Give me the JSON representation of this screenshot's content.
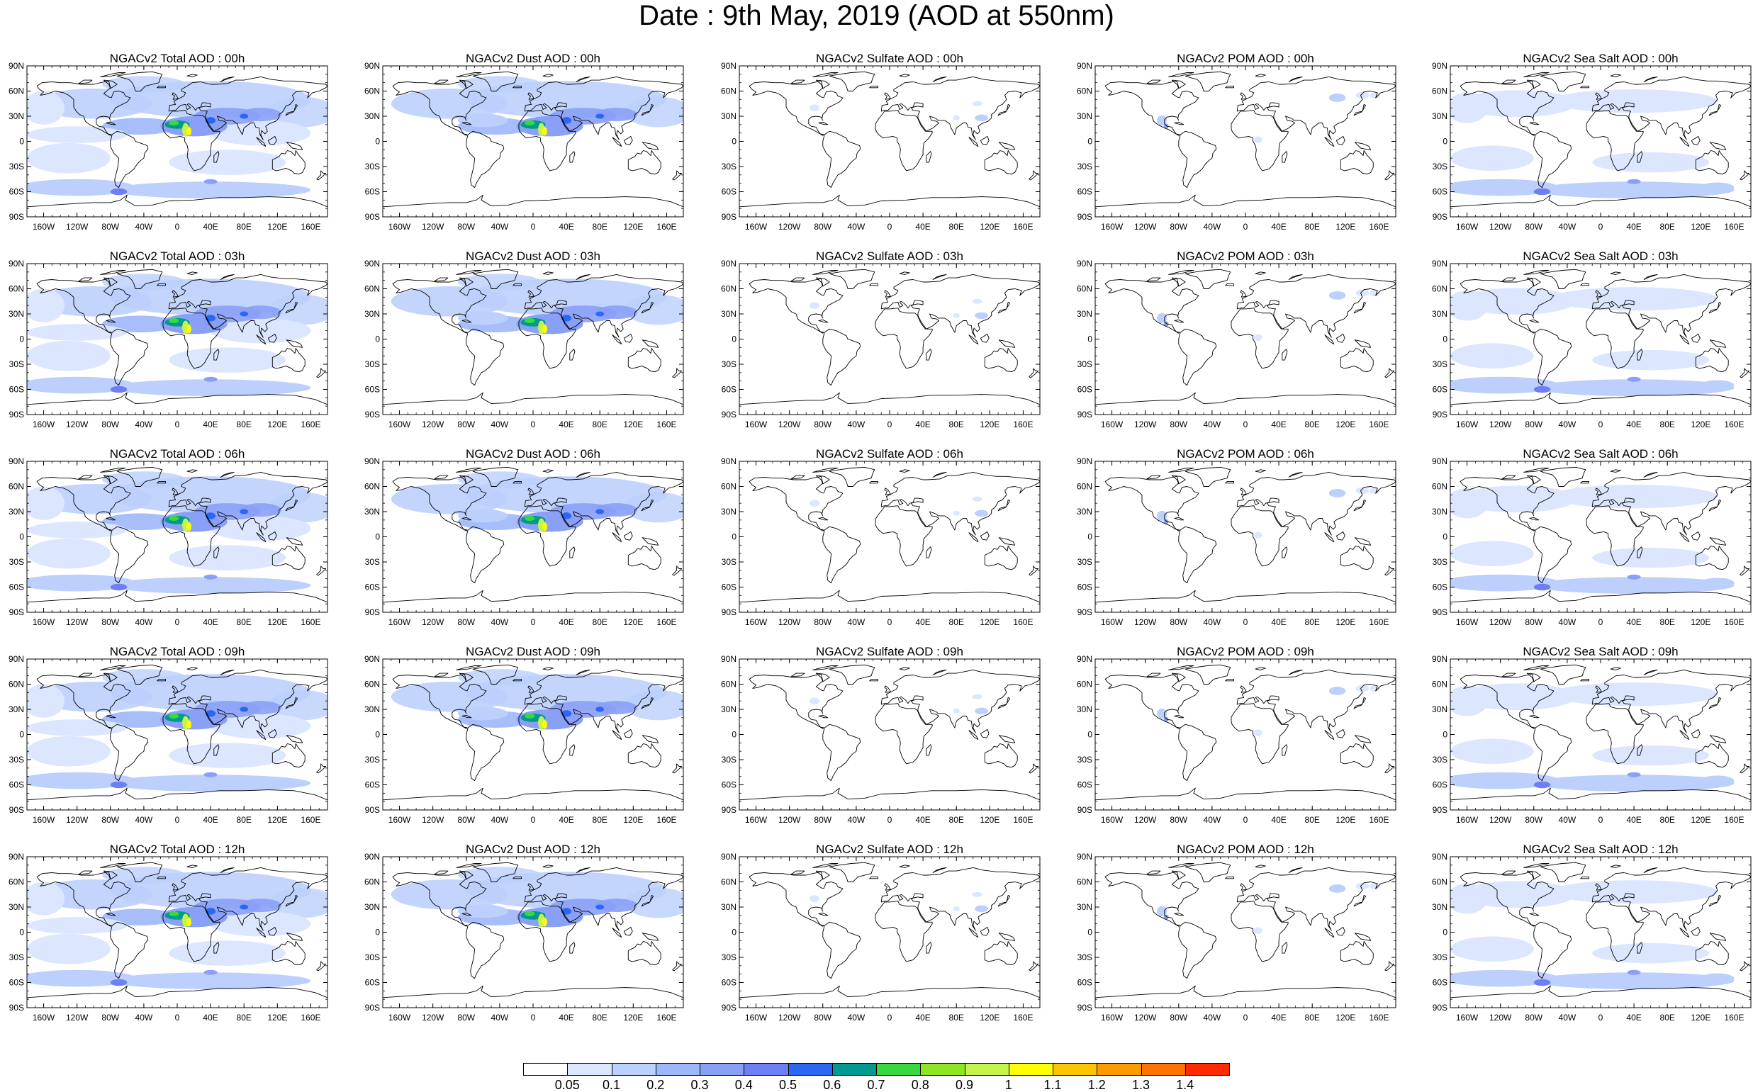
{
  "title": "Date : 9th May, 2019 (AOD at 550nm)",
  "panels": [
    [
      {
        "title": "NGACv2 Total AOD : 00h",
        "type": "total"
      },
      {
        "title": "NGACv2 Dust AOD : 00h",
        "type": "dust"
      },
      {
        "title": "NGACv2 Sulfate AOD : 00h",
        "type": "sulfate"
      },
      {
        "title": "NGACv2 POM AOD : 00h",
        "type": "pom"
      },
      {
        "title": "NGACv2 Sea Salt AOD : 00h",
        "type": "seasalt"
      }
    ],
    [
      {
        "title": "NGACv2 Total AOD : 03h",
        "type": "total"
      },
      {
        "title": "NGACv2 Dust AOD : 03h",
        "type": "dust"
      },
      {
        "title": "NGACv2 Sulfate AOD : 03h",
        "type": "sulfate"
      },
      {
        "title": "NGACv2 POM AOD : 03h",
        "type": "pom"
      },
      {
        "title": "NGACv2 Sea Salt AOD : 03h",
        "type": "seasalt"
      }
    ],
    [
      {
        "title": "NGACv2 Total AOD : 06h",
        "type": "total"
      },
      {
        "title": "NGACv2 Dust AOD : 06h",
        "type": "dust"
      },
      {
        "title": "NGACv2 Sulfate AOD : 06h",
        "type": "sulfate"
      },
      {
        "title": "NGACv2 POM AOD : 06h",
        "type": "pom"
      },
      {
        "title": "NGACv2 Sea Salt AOD : 06h",
        "type": "seasalt"
      }
    ],
    [
      {
        "title": "NGACv2 Total AOD : 09h",
        "type": "total"
      },
      {
        "title": "NGACv2 Dust AOD : 09h",
        "type": "dust"
      },
      {
        "title": "NGACv2 Sulfate AOD : 09h",
        "type": "sulfate"
      },
      {
        "title": "NGACv2 POM AOD : 09h",
        "type": "pom"
      },
      {
        "title": "NGACv2 Sea Salt  AOD : 09h",
        "type": "seasalt"
      }
    ],
    [
      {
        "title": "NGACv2 Total AOD :  12h",
        "type": "total"
      },
      {
        "title": "NGACv2 Dust AOD : 12h",
        "type": "dust"
      },
      {
        "title": "NGACv2 Sulfate AOD : 12h",
        "type": "sulfate"
      },
      {
        "title": "NGACv2 POM  AOD : 12h",
        "type": "pom"
      },
      {
        "title": "NGACv2 Sea Salt AOD : 12h",
        "type": "seasalt"
      }
    ]
  ],
  "lat_ticks": [
    "90N",
    "60N",
    "30N",
    "0",
    "30S",
    "60S",
    "90S"
  ],
  "lon_ticks": [
    "160W",
    "120W",
    "80W",
    "40W",
    "0",
    "40E",
    "80E",
    "120E",
    "160E"
  ],
  "colorbar": {
    "labels": [
      "0.05",
      "0.1",
      "0.2",
      "0.3",
      "0.4",
      "0.5",
      "0.6",
      "0.7",
      "0.8",
      "0.9",
      "1",
      "1.1",
      "1.2",
      "1.3",
      "1.4"
    ],
    "colors": [
      "#ffffff",
      "#dce6fe",
      "#bccffd",
      "#9db7fb",
      "#8aa0f7",
      "#6e7ff3",
      "#2a67f3",
      "#009a8e",
      "#37d93f",
      "#8ee520",
      "#c4f34c",
      "#ffff00",
      "#ffc400",
      "#ff9a00",
      "#ff7400",
      "#ff2a00"
    ]
  }
}
